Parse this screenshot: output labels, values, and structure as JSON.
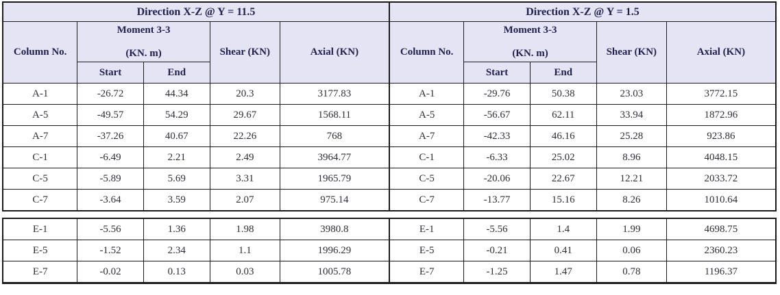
{
  "colors": {
    "header_bg": "#e4e4f4",
    "header_text": "#20204e",
    "body_text": "#2e2e38",
    "border": "#1a1a1a"
  },
  "chart_data": [
    {
      "type": "table",
      "title": "Direction X-Z @ Y = 11.5",
      "headers": {
        "column_no": "Column No.",
        "moment_line1": "Moment 3-3",
        "moment_line2": "(KN. m)",
        "start": "Start",
        "end": "End",
        "shear": "Shear (KN)",
        "axial": "Axial (KN)"
      },
      "groups": [
        [
          {
            "column": "A-1",
            "start": "-26.72",
            "end": "44.34",
            "shear": "20.3",
            "axial": "3177.83"
          },
          {
            "column": "A-5",
            "start": "-49.57",
            "end": "54.29",
            "shear": "29.67",
            "axial": "1568.11"
          },
          {
            "column": "A-7",
            "start": "-37.26",
            "end": "40.67",
            "shear": "22.26",
            "axial": "768"
          },
          {
            "column": "C-1",
            "start": "-6.49",
            "end": "2.21",
            "shear": "2.49",
            "axial": "3964.77"
          },
          {
            "column": "C-5",
            "start": "-5.89",
            "end": "5.69",
            "shear": "3.31",
            "axial": "1965.79"
          },
          {
            "column": "C-7",
            "start": "-3.64",
            "end": "3.59",
            "shear": "2.07",
            "axial": "975.14"
          }
        ],
        [
          {
            "column": "E-1",
            "start": "-5.56",
            "end": "1.36",
            "shear": "1.98",
            "axial": "3980.8"
          },
          {
            "column": "E-5",
            "start": "-1.52",
            "end": "2.34",
            "shear": "1.1",
            "axial": "1996.29"
          },
          {
            "column": "E-7",
            "start": "-0.02",
            "end": "0.13",
            "shear": "0.03",
            "axial": "1005.78"
          }
        ]
      ]
    },
    {
      "type": "table",
      "title": "Direction X-Z @ Y = 1.5",
      "headers": {
        "column_no": "Column No.",
        "moment_line1": "Moment 3-3",
        "moment_line2": "(KN. m)",
        "start": "Start",
        "end": "End",
        "shear": "Shear (KN)",
        "axial": "Axial (KN)"
      },
      "groups": [
        [
          {
            "column": "A-1",
            "start": "-29.76",
            "end": "50.38",
            "shear": "23.03",
            "axial": "3772.15"
          },
          {
            "column": "A-5",
            "start": "-56.67",
            "end": "62.11",
            "shear": "33.94",
            "axial": "1872.96"
          },
          {
            "column": "A-7",
            "start": "-42.33",
            "end": "46.16",
            "shear": "25.28",
            "axial": "923.86"
          },
          {
            "column": "C-1",
            "start": "-6.33",
            "end": "25.02",
            "shear": "8.96",
            "axial": "4048.15"
          },
          {
            "column": "C-5",
            "start": "-20.06",
            "end": "22.67",
            "shear": "12.21",
            "axial": "2033.72"
          },
          {
            "column": "C-7",
            "start": "-13.77",
            "end": "15.16",
            "shear": "8.26",
            "axial": "1010.64"
          }
        ],
        [
          {
            "column": "E-1",
            "start": "-5.56",
            "end": "1.4",
            "shear": "1.99",
            "axial": "4698.75"
          },
          {
            "column": "E-5",
            "start": "-0.21",
            "end": "0.41",
            "shear": "0.06",
            "axial": "2360.23"
          },
          {
            "column": "E-7",
            "start": "-1.25",
            "end": "1.47",
            "shear": "0.78",
            "axial": "1196.37"
          }
        ]
      ]
    }
  ]
}
